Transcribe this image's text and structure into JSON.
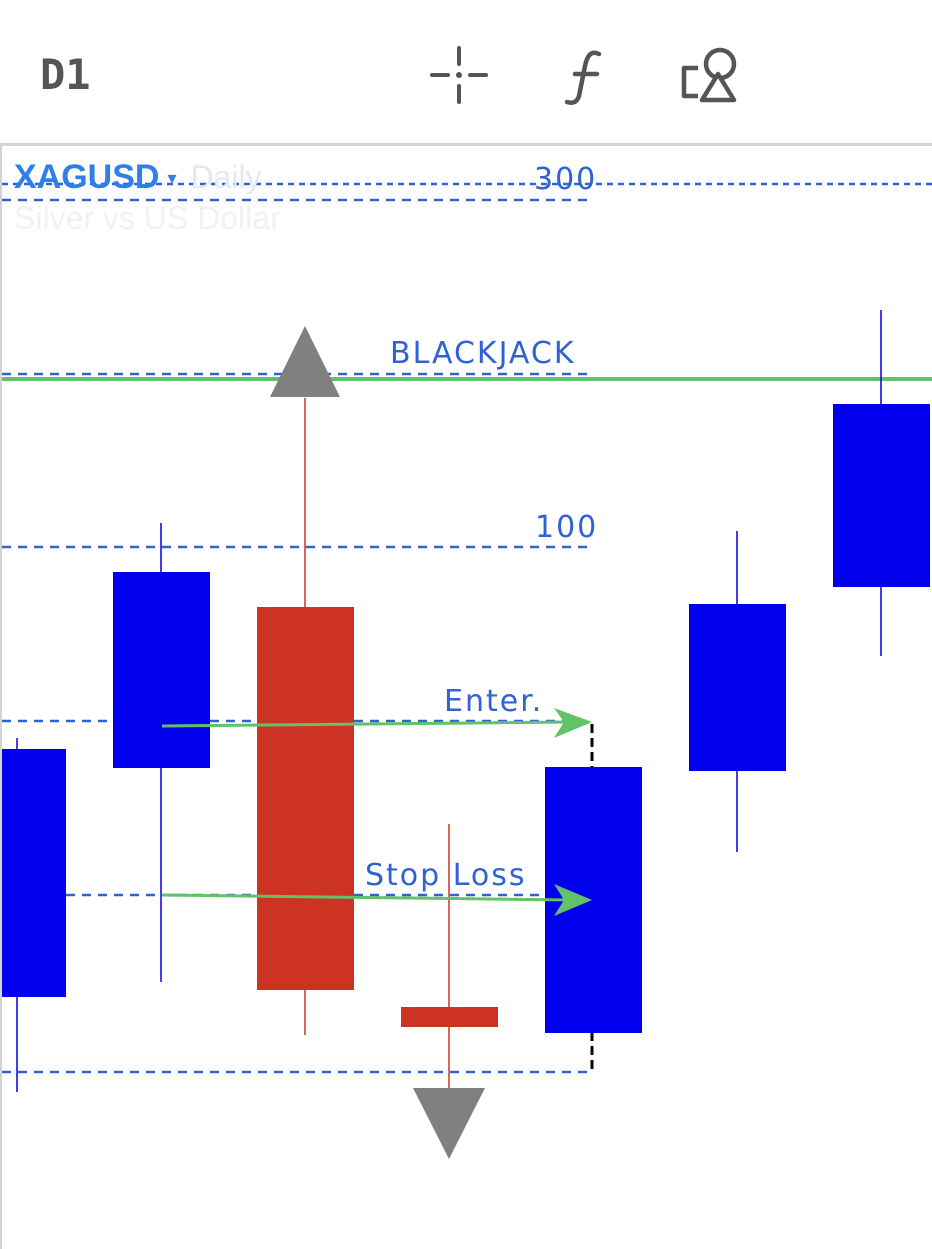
{
  "toolbar": {
    "timeframe": "D1",
    "crosshair_icon": "crosshair-icon",
    "indicators_icon": "function-icon",
    "objects_icon": "shapes-icon"
  },
  "symbol": {
    "name": "XAGUSD",
    "caret": "▾",
    "period": "Daily",
    "description": "Silver vs US Dollar"
  },
  "levels": {
    "l300": "300",
    "blackjack": "BLACKJACK",
    "l100": "100",
    "enter": "Enter.",
    "stop_loss": "Stop Loss"
  },
  "colors": {
    "bull": "#0000ee",
    "bear": "#cc3322",
    "level_line": "#2f62d3",
    "green": "#62c26a",
    "arrow": "#808080"
  }
}
